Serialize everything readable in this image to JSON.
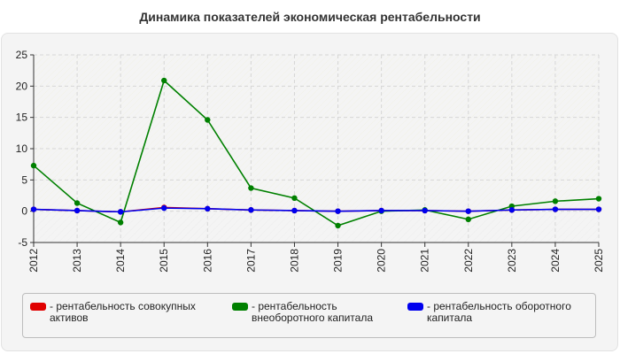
{
  "chart_data": {
    "type": "line",
    "title": "Динамика показателей экономическая рентабельности",
    "categories": [
      "2012",
      "2013",
      "2014",
      "2015",
      "2016",
      "2017",
      "2018",
      "2019",
      "2020",
      "2021",
      "2022",
      "2023",
      "2024",
      "2025"
    ],
    "ylim": [
      -5,
      25
    ],
    "yticks": [
      25,
      20,
      15,
      10,
      5,
      0,
      -5
    ],
    "grid": true,
    "legend_position": "bottom",
    "series": [
      {
        "name": "- рентабельность совокупных активов",
        "color": "#e00000",
        "values": [
          0.3,
          0.1,
          -0.1,
          0.6,
          0.4,
          0.2,
          0.1,
          0.0,
          0.1,
          0.1,
          0.0,
          0.2,
          0.3,
          0.3
        ]
      },
      {
        "name": "- рентабельность внеоборотного капитала",
        "color": "#008000",
        "values": [
          7.3,
          1.3,
          -1.8,
          20.9,
          14.6,
          3.7,
          2.1,
          -2.3,
          0.0,
          0.2,
          -1.3,
          0.8,
          1.6,
          2.0
        ]
      },
      {
        "name": "- рентабельность оборотного капитала",
        "color": "#0000ee",
        "values": [
          0.3,
          0.1,
          -0.1,
          0.5,
          0.4,
          0.2,
          0.1,
          0.0,
          0.1,
          0.1,
          0.0,
          0.2,
          0.3,
          0.3
        ]
      }
    ]
  }
}
